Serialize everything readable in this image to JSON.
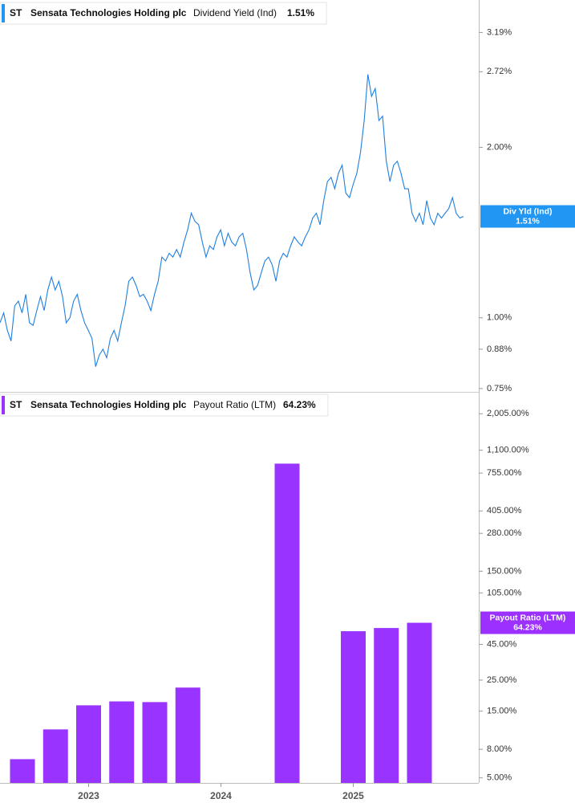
{
  "chart_data": [
    {
      "type": "line",
      "legend": {
        "ticker": "ST",
        "company": "Sensata Technologies Holding plc",
        "metric": "Dividend Yield (Ind)",
        "value_label": "1.51%"
      },
      "badge": {
        "name": "Div Yld (Ind)",
        "value_label": "1.51%"
      },
      "color": "#1f7fe0",
      "badge_color": "#2196f3",
      "log": true,
      "ylim": [
        0.74,
        3.64
      ],
      "yticks": [
        {
          "value": 3.19,
          "label": "3.19%"
        },
        {
          "value": 2.72,
          "label": "2.72%"
        },
        {
          "value": 2.0,
          "label": "2.00%"
        },
        {
          "value": 1.0,
          "label": "1.00%"
        },
        {
          "value": 0.88,
          "label": "0.88%"
        },
        {
          "value": 0.75,
          "label": "0.75%"
        }
      ],
      "values": [
        0.98,
        1.02,
        0.95,
        0.91,
        1.05,
        1.07,
        1.02,
        1.1,
        0.98,
        0.97,
        1.03,
        1.09,
        1.03,
        1.12,
        1.18,
        1.12,
        1.16,
        1.09,
        0.98,
        1.0,
        1.07,
        1.1,
        1.03,
        0.98,
        0.95,
        0.92,
        0.82,
        0.86,
        0.88,
        0.85,
        0.92,
        0.95,
        0.91,
        0.98,
        1.05,
        1.16,
        1.18,
        1.14,
        1.09,
        1.1,
        1.07,
        1.03,
        1.1,
        1.16,
        1.28,
        1.26,
        1.3,
        1.28,
        1.32,
        1.28,
        1.36,
        1.43,
        1.53,
        1.48,
        1.46,
        1.36,
        1.28,
        1.34,
        1.32,
        1.39,
        1.43,
        1.34,
        1.41,
        1.36,
        1.34,
        1.39,
        1.41,
        1.32,
        1.2,
        1.12,
        1.14,
        1.2,
        1.26,
        1.28,
        1.24,
        1.16,
        1.26,
        1.3,
        1.28,
        1.34,
        1.39,
        1.36,
        1.34,
        1.39,
        1.43,
        1.5,
        1.53,
        1.46,
        1.61,
        1.74,
        1.77,
        1.69,
        1.8,
        1.86,
        1.66,
        1.63,
        1.72,
        1.8,
        1.96,
        2.23,
        2.69,
        2.46,
        2.54,
        2.23,
        2.27,
        1.89,
        1.74,
        1.86,
        1.89,
        1.8,
        1.69,
        1.69,
        1.53,
        1.48,
        1.53,
        1.46,
        1.61,
        1.5,
        1.46,
        1.53,
        1.5,
        1.53,
        1.56,
        1.63,
        1.53,
        1.5,
        1.51
      ]
    },
    {
      "type": "bar",
      "legend": {
        "ticker": "ST",
        "company": "Sensata Technologies Holding plc",
        "metric": "Payout Ratio (LTM)",
        "value_label": "64.23%"
      },
      "badge": {
        "name": "Payout Ratio (LTM)",
        "value_label": "64.23%"
      },
      "color": "#9933ff",
      "badge_color": "#9b30ff",
      "log": true,
      "ylim": [
        4.6,
        2800
      ],
      "yticks": [
        {
          "value": 2005,
          "label": "2,005.00%"
        },
        {
          "value": 1100,
          "label": "1,100.00%"
        },
        {
          "value": 755,
          "label": "755.00%"
        },
        {
          "value": 405,
          "label": "405.00%"
        },
        {
          "value": 280,
          "label": "280.00%"
        },
        {
          "value": 150,
          "label": "150.00%"
        },
        {
          "value": 105,
          "label": "105.00%"
        },
        {
          "value": 45,
          "label": "45.00%"
        },
        {
          "value": 25,
          "label": "25.00%"
        },
        {
          "value": 15,
          "label": "15.00%"
        },
        {
          "value": 8,
          "label": "8.00%"
        },
        {
          "value": 5,
          "label": "5.00%"
        }
      ],
      "categories": [
        null,
        null,
        "2023",
        null,
        null,
        null,
        "2024",
        null,
        null,
        null,
        "2025",
        null,
        null
      ],
      "values": [
        6.8,
        11.1,
        16.5,
        17.6,
        17.4,
        22.1,
        null,
        null,
        882,
        null,
        55.9,
        58.9,
        64.23
      ]
    }
  ]
}
